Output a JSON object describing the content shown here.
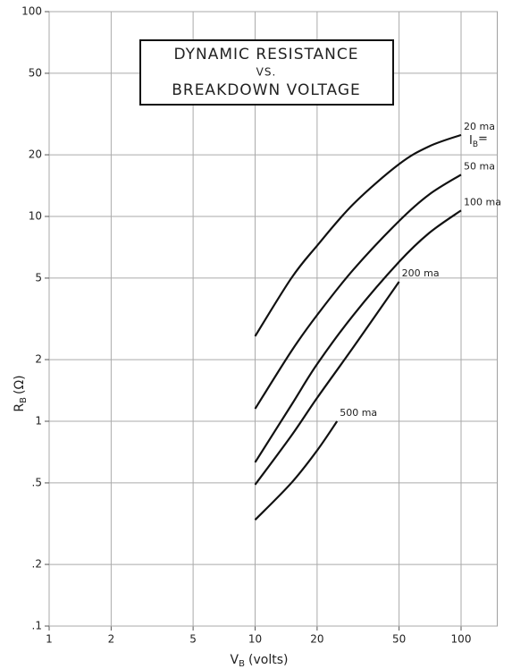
{
  "chart_data": {
    "type": "line",
    "title": [
      "DYNAMIC RESISTANCE",
      "VS.",
      "BREAKDOWN VOLTAGE"
    ],
    "xlabel": {
      "main": "V",
      "sub": "B",
      "unit": "(volts)"
    },
    "ylabel": {
      "main": "R",
      "sub": "B",
      "unit": "(Ω)"
    },
    "annotation": {
      "main": "I",
      "sub": "B",
      "rest": "="
    },
    "log_x": true,
    "log_y": true,
    "grid": true,
    "xlim": [
      1,
      150
    ],
    "ylim": [
      0.1,
      100
    ],
    "xticks": [
      1,
      2,
      5,
      10,
      20,
      50,
      100
    ],
    "yticks": [
      {
        "value": 0.1,
        "label": ".1"
      },
      {
        "value": 0.2,
        "label": ".2"
      },
      {
        "value": 0.5,
        "label": ".5"
      },
      1,
      2,
      5,
      10,
      20,
      50,
      100
    ],
    "series": [
      {
        "name": "20 ma",
        "color": "#111",
        "x": [
          10,
          15,
          20,
          30,
          50,
          70,
          100
        ],
        "values": [
          2.6,
          5,
          7.2,
          11.5,
          18,
          22,
          25
        ]
      },
      {
        "name": "50 ma",
        "color": "#111",
        "x": [
          10,
          15,
          20,
          30,
          50,
          70,
          100
        ],
        "values": [
          1.15,
          2.2,
          3.3,
          5.5,
          9.5,
          12.8,
          16
        ]
      },
      {
        "name": "100 ma",
        "color": "#111",
        "x": [
          10,
          15,
          20,
          30,
          50,
          70,
          100
        ],
        "values": [
          0.63,
          1.2,
          1.9,
          3.3,
          6,
          8.3,
          10.7
        ]
      },
      {
        "name": "200 ma",
        "color": "#111",
        "x": [
          10,
          15,
          20,
          30,
          50
        ],
        "values": [
          0.49,
          0.85,
          1.3,
          2.3,
          4.8
        ]
      },
      {
        "name": "500 ma",
        "color": "#111",
        "x": [
          10,
          15,
          20,
          25
        ],
        "values": [
          0.33,
          0.5,
          0.72,
          1.0
        ]
      }
    ]
  }
}
